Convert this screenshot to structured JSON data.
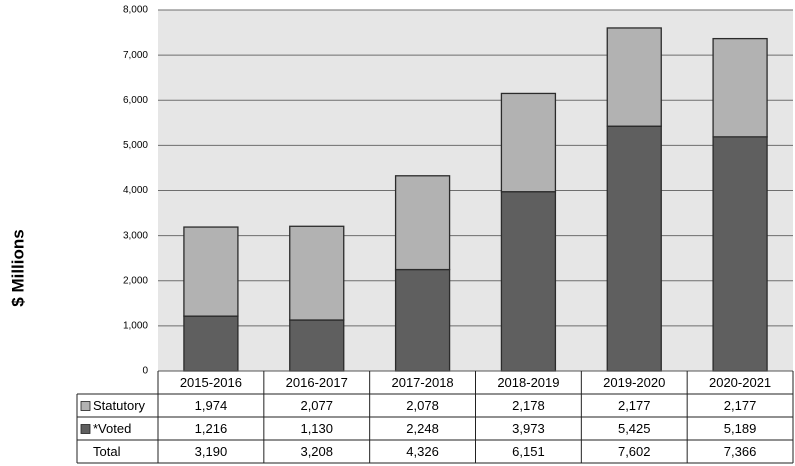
{
  "chart_data": {
    "type": "stacked-bar",
    "y_label": "$ Millions",
    "categories": [
      "2015-2016",
      "2016-2017",
      "2017-2018",
      "2018-2019",
      "2019-2020",
      "2020-2021"
    ],
    "series": [
      {
        "name": "Statutory",
        "color": "#b2b2b2",
        "values": [
          1974,
          2077,
          2078,
          2178,
          2177,
          2177
        ],
        "value_labels": [
          "1,974",
          "2,077",
          "2,078",
          "2,178",
          "2,177",
          "2,177"
        ]
      },
      {
        "name": "*Voted",
        "color": "#5f5f5f",
        "values": [
          1216,
          1130,
          2248,
          3973,
          5425,
          5189
        ],
        "value_labels": [
          "1,216",
          "1,130",
          "2,248",
          "3,973",
          "5,425",
          "5,189"
        ]
      }
    ],
    "total": {
      "name": "Total",
      "values": [
        3190,
        3208,
        4326,
        6151,
        7602,
        7366
      ],
      "value_labels": [
        "3,190",
        "3,208",
        "4,326",
        "6,151",
        "7,602",
        "7,366"
      ]
    },
    "ylim": [
      0,
      8000
    ],
    "yticks": [
      0,
      {
        "value": 1000,
        "label": "1,000"
      },
      {
        "value": 2000,
        "label": "2,000"
      },
      {
        "value": 3000,
        "label": "3,000"
      },
      {
        "value": 4000,
        "label": "4,000"
      },
      {
        "value": 5000,
        "label": "5,000"
      },
      {
        "value": 6000,
        "label": "6,000"
      },
      {
        "value": 7000,
        "label": "7,000"
      },
      {
        "value": 8000,
        "label": "8,000"
      }
    ],
    "grid": true
  }
}
